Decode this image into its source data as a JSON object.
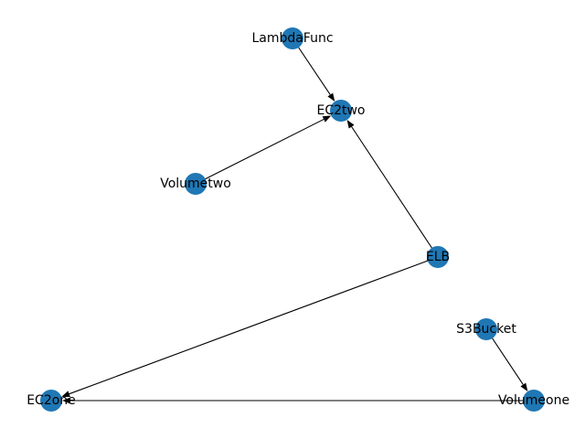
{
  "graph": {
    "node_color": "#1f77b4",
    "edge_color": "#000000",
    "directed": true,
    "nodes": [
      {
        "id": "LambdaFunc",
        "label": "LambdaFunc"
      },
      {
        "id": "EC2two",
        "label": "EC2two"
      },
      {
        "id": "Volumetwo",
        "label": "Volumetwo"
      },
      {
        "id": "ELB",
        "label": "ELB"
      },
      {
        "id": "S3Bucket",
        "label": "S3Bucket"
      },
      {
        "id": "EC2one",
        "label": "EC2one"
      },
      {
        "id": "Volumeone",
        "label": "Volumeone"
      }
    ],
    "edges": [
      {
        "source": "LambdaFunc",
        "target": "EC2two"
      },
      {
        "source": "Volumetwo",
        "target": "EC2two"
      },
      {
        "source": "ELB",
        "target": "EC2two"
      },
      {
        "source": "ELB",
        "target": "EC2one"
      },
      {
        "source": "S3Bucket",
        "target": "Volumeone"
      },
      {
        "source": "Volumeone",
        "target": "EC2one"
      }
    ]
  }
}
